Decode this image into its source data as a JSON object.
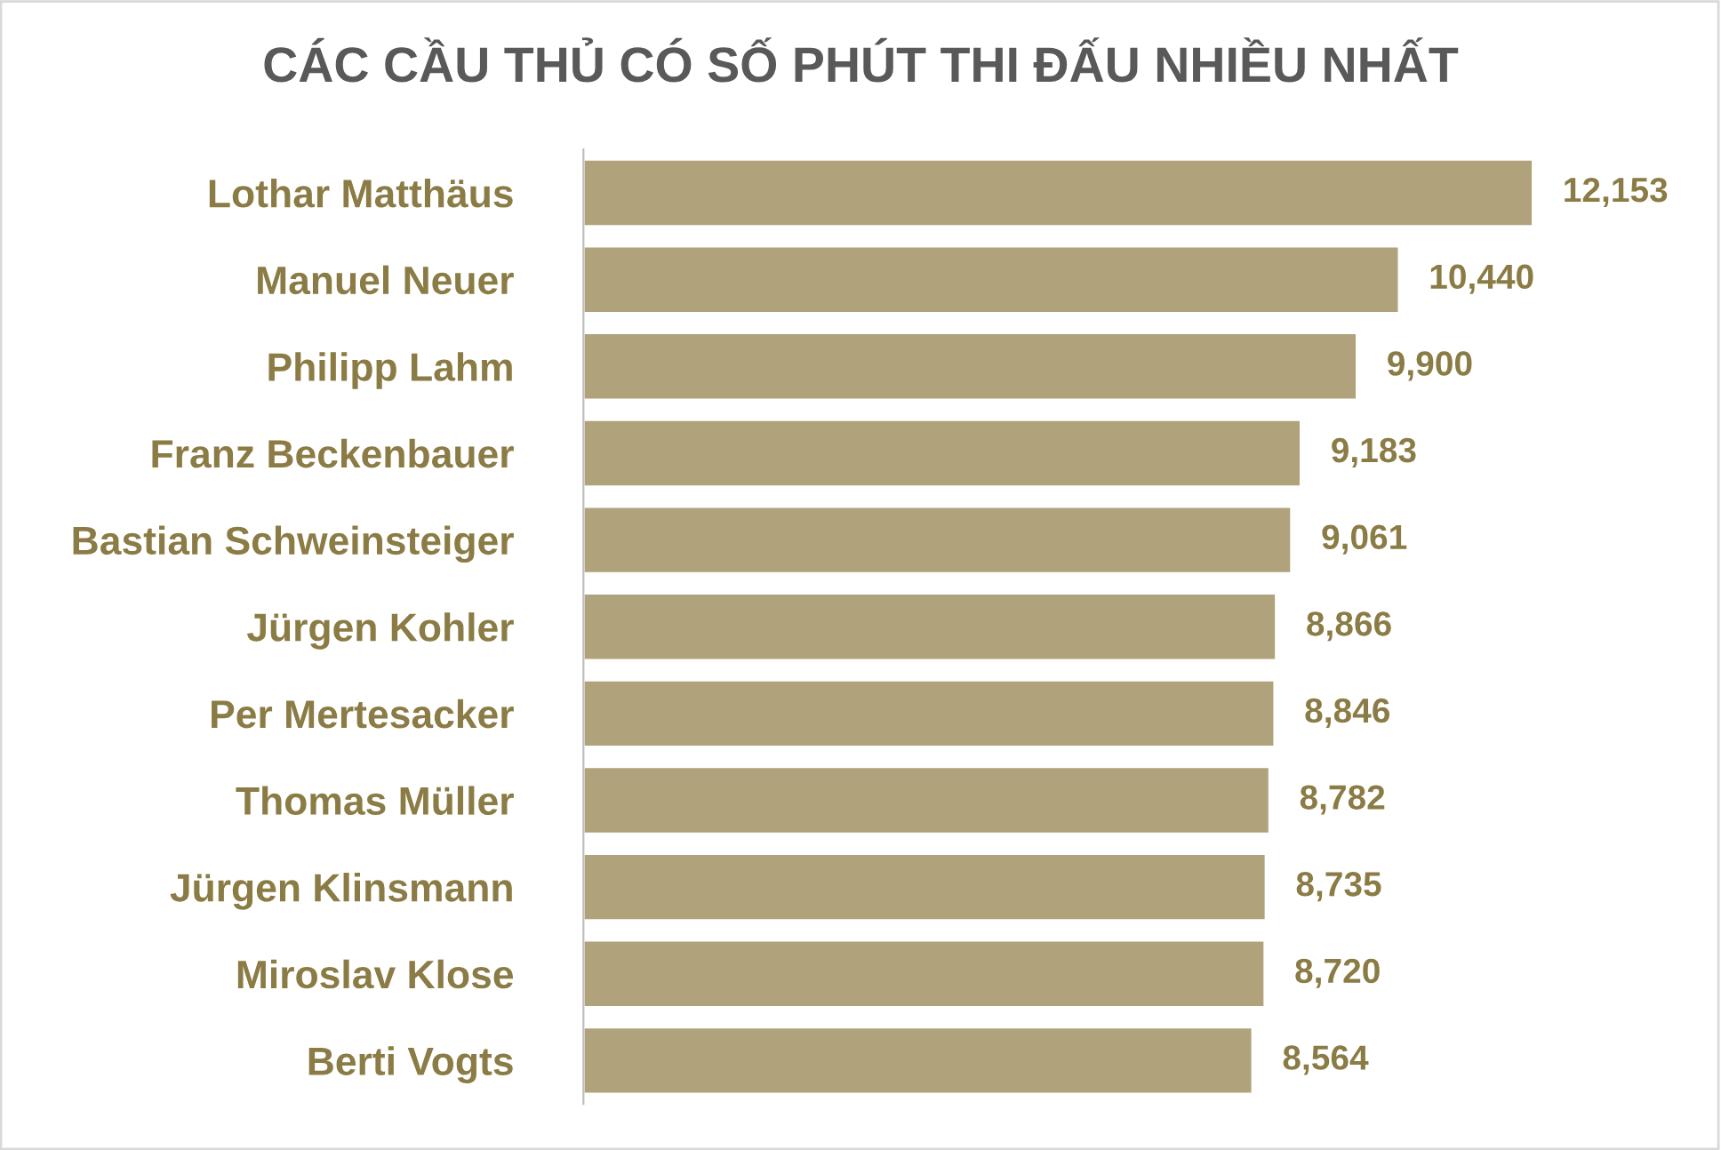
{
  "chart_data": {
    "type": "bar",
    "orientation": "horizontal",
    "title": "CÁC CẦU THỦ CÓ SỐ PHÚT THI ĐẤU NHIỀU NHẤT",
    "categories": [
      "Lothar Matthäus",
      "Manuel Neuer",
      "Philipp Lahm",
      "Franz Beckenbauer",
      "Bastian Schweinsteiger",
      "Jürgen Kohler",
      "Per Mertesacker",
      "Thomas Müller",
      "Jürgen Klinsmann",
      "Miroslav Klose",
      "Berti Vogts"
    ],
    "values": [
      12153,
      10440,
      9900,
      9183,
      9061,
      8866,
      8846,
      8782,
      8735,
      8720,
      8564
    ],
    "value_labels": [
      "12,153",
      "10,440",
      "9,900",
      "9,183",
      "9,061",
      "8,866",
      "8,846",
      "8,782",
      "8,735",
      "8,720",
      "8,564"
    ],
    "color": "#b0a27a",
    "tick_labels": "y",
    "grid": false,
    "legend": false
  }
}
